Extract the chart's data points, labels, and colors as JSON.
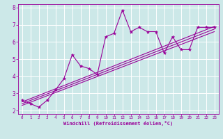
{
  "title": "",
  "xlabel": "Windchill (Refroidissement éolien,°C)",
  "ylabel": "",
  "bg_color": "#cce8e8",
  "line_color": "#990099",
  "grid_color": "#ffffff",
  "xlim": [
    -0.5,
    23.5
  ],
  "ylim": [
    1.8,
    8.2
  ],
  "xticks": [
    0,
    1,
    2,
    3,
    4,
    5,
    6,
    7,
    8,
    9,
    10,
    11,
    12,
    13,
    14,
    15,
    16,
    17,
    18,
    19,
    20,
    21,
    22,
    23
  ],
  "yticks": [
    2,
    3,
    4,
    5,
    6,
    7,
    8
  ],
  "data_x": [
    0,
    1,
    2,
    3,
    4,
    5,
    6,
    7,
    8,
    9,
    10,
    11,
    12,
    13,
    14,
    15,
    16,
    17,
    18,
    19,
    20,
    21,
    22,
    23
  ],
  "data_y1": [
    2.6,
    2.4,
    2.2,
    2.6,
    3.2,
    3.85,
    5.25,
    4.6,
    4.45,
    4.1,
    6.3,
    6.5,
    7.85,
    6.6,
    6.85,
    6.6,
    6.6,
    5.35,
    6.3,
    5.55,
    5.55,
    6.85,
    6.85,
    6.85
  ],
  "reg_lines": [
    {
      "x": [
        0,
        23
      ],
      "y": [
        2.5,
        6.9
      ]
    },
    {
      "x": [
        0,
        23
      ],
      "y": [
        2.4,
        6.75
      ]
    },
    {
      "x": [
        0,
        23
      ],
      "y": [
        2.3,
        6.6
      ]
    }
  ]
}
